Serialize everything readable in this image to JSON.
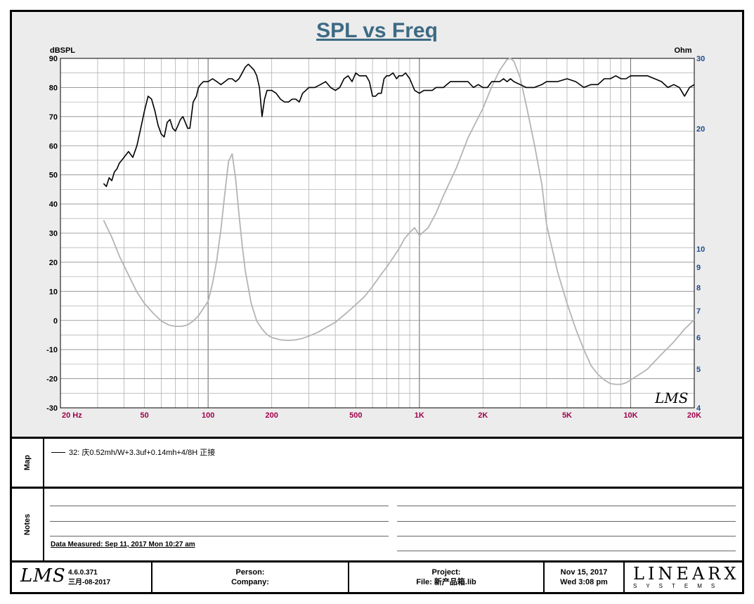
{
  "chart_data": {
    "type": "line",
    "title": "SPL vs Freq",
    "ylabel_left": "dBSPL",
    "ylabel_right": "Ohm",
    "x_scale": "log",
    "xlim": [
      20,
      20000
    ],
    "ylim_left": [
      -30,
      90
    ],
    "ylim_right": [
      4,
      30
    ],
    "grid": true,
    "x_ticks": [
      {
        "value": 20,
        "label": "20  Hz"
      },
      {
        "value": 50,
        "label": "50"
      },
      {
        "value": 100,
        "label": "100"
      },
      {
        "value": 200,
        "label": "200"
      },
      {
        "value": 500,
        "label": "500"
      },
      {
        "value": 1000,
        "label": "1K"
      },
      {
        "value": 2000,
        "label": "2K"
      },
      {
        "value": 5000,
        "label": "5K"
      },
      {
        "value": 10000,
        "label": "10K"
      },
      {
        "value": 20000,
        "label": "20K"
      }
    ],
    "y_ticks_left": [
      "90",
      "80",
      "70",
      "60",
      "50",
      "40",
      "30",
      "20",
      "10",
      "0",
      "-10",
      "-20",
      "-30"
    ],
    "y_ticks_right": [
      {
        "value": 30,
        "label": "30"
      },
      {
        "value": 20,
        "label": "20"
      },
      {
        "value": 10,
        "label": "10"
      },
      {
        "value": 9,
        "label": "9"
      },
      {
        "value": 8,
        "label": "8"
      },
      {
        "value": 7,
        "label": "7"
      },
      {
        "value": 6,
        "label": "6"
      },
      {
        "value": 5,
        "label": "5"
      },
      {
        "value": 4,
        "label": "4"
      }
    ],
    "series": [
      {
        "axis": "left",
        "color": "#000000",
        "x": [
          32,
          33,
          34,
          35,
          36,
          37,
          38,
          39,
          40,
          42,
          44,
          46,
          48,
          50,
          52,
          54,
          56,
          58,
          60,
          62,
          64,
          66,
          68,
          70,
          72,
          74,
          76,
          78,
          80,
          82,
          85,
          88,
          90,
          92,
          95,
          98,
          100,
          105,
          110,
          115,
          120,
          125,
          130,
          135,
          140,
          145,
          150,
          155,
          160,
          165,
          170,
          175,
          180,
          185,
          190,
          195,
          200,
          210,
          220,
          230,
          240,
          250,
          260,
          270,
          280,
          290,
          300,
          320,
          340,
          360,
          380,
          400,
          420,
          440,
          460,
          480,
          500,
          520,
          540,
          560,
          580,
          600,
          620,
          640,
          660,
          680,
          700,
          720,
          750,
          780,
          800,
          830,
          860,
          900,
          950,
          1000,
          1050,
          1100,
          1150,
          1200,
          1300,
          1400,
          1500,
          1600,
          1700,
          1800,
          1900,
          2000,
          2100,
          2200,
          2300,
          2400,
          2500,
          2600,
          2700,
          2800,
          3000,
          3200,
          3500,
          3800,
          4000,
          4500,
          5000,
          5500,
          6000,
          6500,
          7000,
          7500,
          8000,
          8500,
          9000,
          9500,
          10000,
          11000,
          12000,
          13000,
          14000,
          15000,
          16000,
          17000,
          18000,
          19000,
          20000
        ],
        "y": [
          47,
          46,
          49,
          48,
          51,
          52,
          54,
          55,
          56,
          58,
          56,
          60,
          66,
          72,
          77,
          76,
          72,
          67,
          64,
          63,
          68,
          69,
          66,
          65,
          67,
          69,
          70,
          68,
          66,
          66,
          75,
          77,
          80,
          81,
          82,
          82,
          82,
          83,
          82,
          81,
          82,
          83,
          83,
          82,
          83,
          85,
          87,
          88,
          87,
          86,
          84,
          80,
          70,
          76,
          79,
          79,
          79,
          78,
          76,
          75,
          75,
          76,
          76,
          75,
          78,
          79,
          80,
          80,
          81,
          82,
          80,
          79,
          80,
          83,
          84,
          82,
          85,
          84,
          84,
          84,
          82,
          77,
          77,
          78,
          78,
          83,
          84,
          84,
          85,
          83,
          84,
          84,
          85,
          83,
          79,
          78,
          79,
          79,
          79,
          80,
          80,
          82,
          82,
          82,
          82,
          80,
          81,
          80,
          80,
          82,
          82,
          82,
          83,
          82,
          83,
          82,
          81,
          80,
          80,
          81,
          82,
          82,
          83,
          82,
          80,
          81,
          81,
          83,
          83,
          84,
          83,
          83,
          84,
          84,
          84,
          83,
          82,
          80,
          81,
          80,
          77,
          80,
          81
        ]
      },
      {
        "axis": "right",
        "color": "#b4b4b4",
        "x": [
          32,
          35,
          38,
          42,
          46,
          50,
          55,
          60,
          65,
          70,
          75,
          80,
          85,
          90,
          95,
          100,
          105,
          110,
          115,
          120,
          125,
          130,
          135,
          140,
          145,
          150,
          160,
          170,
          180,
          190,
          200,
          220,
          240,
          260,
          280,
          300,
          330,
          360,
          400,
          450,
          500,
          550,
          600,
          650,
          700,
          750,
          800,
          850,
          900,
          950,
          1000,
          1100,
          1200,
          1300,
          1500,
          1700,
          2000,
          2200,
          2400,
          2600,
          2700,
          2800,
          3000,
          3200,
          3500,
          3800,
          4000,
          4500,
          5000,
          5500,
          6000,
          6500,
          7000,
          7500,
          8000,
          8500,
          9000,
          9500,
          10000,
          11000,
          12000,
          14000,
          16000,
          18000,
          20000
        ],
        "y": [
          11.8,
          10.7,
          9.6,
          8.6,
          7.8,
          7.3,
          6.9,
          6.6,
          6.45,
          6.4,
          6.4,
          6.45,
          6.6,
          6.8,
          7.1,
          7.4,
          8.2,
          9.4,
          11.2,
          13.8,
          16.6,
          17.3,
          15.0,
          12.2,
          10.2,
          8.8,
          7.3,
          6.6,
          6.3,
          6.1,
          6.0,
          5.92,
          5.9,
          5.92,
          5.97,
          6.05,
          6.18,
          6.35,
          6.55,
          6.9,
          7.25,
          7.6,
          8.05,
          8.55,
          9.0,
          9.5,
          10.0,
          10.6,
          11.0,
          11.3,
          10.8,
          11.3,
          12.3,
          13.6,
          16.0,
          19.0,
          22.5,
          25.5,
          28.0,
          29.8,
          30.0,
          29.5,
          26.8,
          23.0,
          18.3,
          14.5,
          11.5,
          8.8,
          7.3,
          6.3,
          5.6,
          5.1,
          4.85,
          4.7,
          4.6,
          4.58,
          4.58,
          4.62,
          4.7,
          4.85,
          5.0,
          5.45,
          5.85,
          6.3,
          6.65
        ]
      }
    ],
    "watermark": "LMS"
  },
  "map": {
    "label": "Map",
    "entry": "32: 庆0.52mh/W+3.3uf+0.14mh+4/8H   正接"
  },
  "notes": {
    "label": "Notes",
    "measured": "Data Measured: Sep 11, 2017  Mon 10:27 am"
  },
  "footer": {
    "logo": "LMS",
    "version": "4.6.0.371",
    "version_date": "三月-08-2017",
    "person": "Person:",
    "company": "Company:",
    "project": "Project:",
    "file": "File: 新产品箱.lib",
    "date": "Nov 15, 2017",
    "time": "Wed  3:08 pm",
    "brand_main": "LINEARX",
    "brand_sub": "SYSTEMS"
  }
}
